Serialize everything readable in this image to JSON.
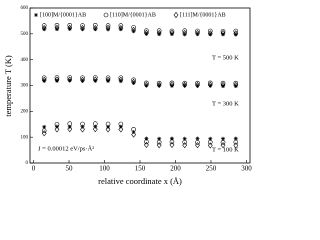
{
  "chart_data": {
    "type": "scatter",
    "x_label": "relative coordinate x (Å)",
    "y_label": "temperature T (K)",
    "annotations": [
      "T = 500 K",
      "T = 300 K",
      "T = 100 K",
      "J = 0.00012 eV/ps·Å²"
    ],
    "xlim": [
      -5,
      305
    ],
    "xticks": [
      0,
      50,
      100,
      150,
      200,
      250,
      300
    ],
    "ylim": [
      0,
      600
    ],
    "yticks": [
      0,
      100,
      200,
      300,
      400,
      500,
      600
    ],
    "x": [
      15,
      33,
      51,
      69,
      87,
      105,
      123,
      141,
      159,
      177,
      195,
      213,
      231,
      249,
      267,
      285
    ],
    "series": [
      {
        "name": "[100]M/{0001}AB",
        "marker": "plus",
        "color": "#000000",
        "values": [
          [
            518,
            518,
            519,
            518,
            518,
            517,
            518,
            510,
            500,
            499,
            499,
            498,
            499,
            498,
            498,
            497
          ],
          [
            318,
            318,
            319,
            318,
            318,
            318,
            317,
            310,
            300,
            300,
            299,
            300,
            299,
            299,
            298,
            298
          ],
          [
            140,
            141,
            140,
            141,
            141,
            140,
            141,
            120,
            95,
            94,
            95,
            94,
            95,
            94,
            94,
            95
          ]
        ]
      },
      {
        "name": "[110]M/{0001}AB",
        "marker": "circle",
        "color": "#000000",
        "values": [
          [
            532,
            533,
            533,
            532,
            533,
            532,
            532,
            525,
            512,
            512,
            511,
            512,
            511,
            511,
            510,
            511
          ],
          [
            330,
            331,
            331,
            330,
            331,
            330,
            330,
            322,
            310,
            309,
            310,
            309,
            309,
            310,
            309,
            309
          ],
          [
            125,
            150,
            152,
            151,
            152,
            151,
            151,
            130,
            82,
            81,
            82,
            81,
            80,
            81,
            80,
            81
          ]
        ]
      },
      {
        "name": "[111]M/{0001}AB",
        "marker": "diamond",
        "color": "#000000",
        "values": [
          [
            522,
            523,
            523,
            522,
            522,
            523,
            522,
            515,
            504,
            503,
            504,
            503,
            503,
            502,
            503,
            502
          ],
          [
            322,
            323,
            323,
            322,
            323,
            322,
            322,
            314,
            303,
            302,
            303,
            302,
            302,
            303,
            302,
            302
          ],
          [
            115,
            130,
            131,
            130,
            131,
            130,
            130,
            110,
            70,
            69,
            70,
            69,
            69,
            68,
            69,
            68
          ]
        ]
      }
    ]
  }
}
